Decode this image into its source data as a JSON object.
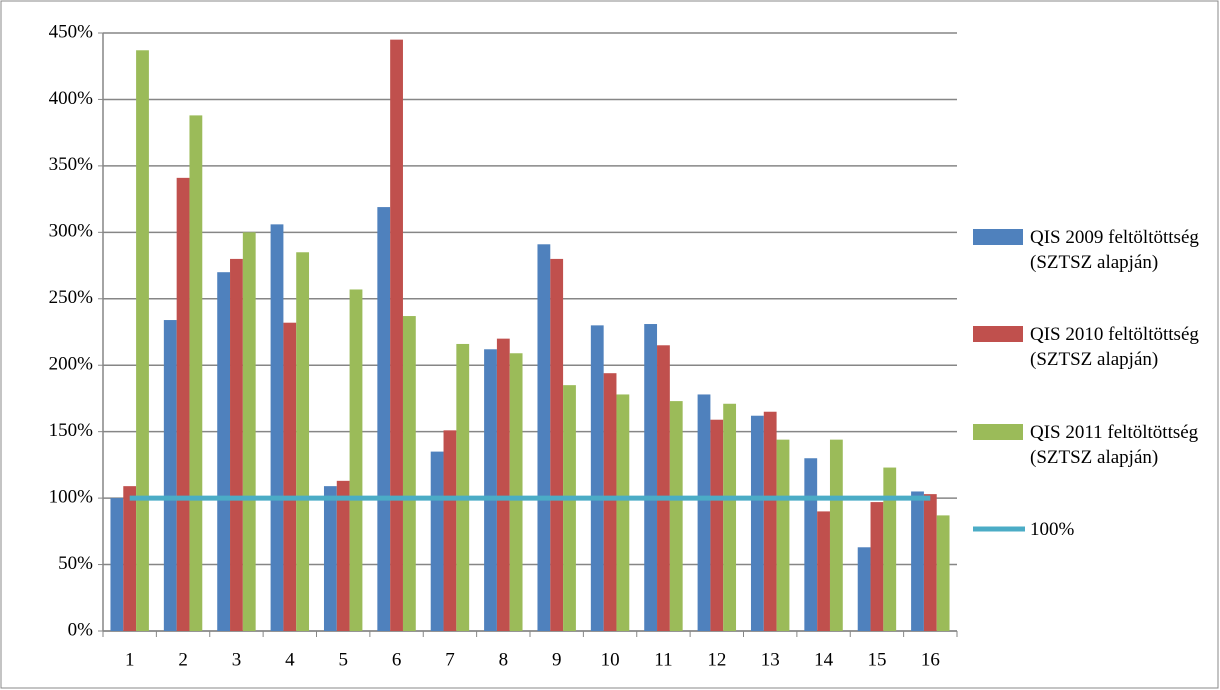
{
  "chart_data": {
    "type": "bar",
    "categories": [
      "1",
      "2",
      "3",
      "4",
      "5",
      "6",
      "7",
      "8",
      "9",
      "10",
      "11",
      "12",
      "13",
      "14",
      "15",
      "16"
    ],
    "series": [
      {
        "name": "QIS 2009 feltöltöttség (SZTSZ alapján)",
        "color": "#4f81bd",
        "values": [
          100,
          234,
          270,
          306,
          109,
          319,
          135,
          212,
          291,
          230,
          231,
          178,
          162,
          130,
          63,
          105
        ]
      },
      {
        "name": "QIS 2010 feltöltöttség (SZTSZ alapján)",
        "color": "#c0504d",
        "values": [
          109,
          341,
          280,
          232,
          113,
          445,
          151,
          220,
          280,
          194,
          215,
          159,
          165,
          90,
          97,
          103
        ]
      },
      {
        "name": "QIS 2011 feltöltöttség (SZTSZ alapján)",
        "color": "#9bbb59",
        "values": [
          437,
          388,
          300,
          285,
          257,
          237,
          216,
          209,
          185,
          178,
          173,
          171,
          144,
          144,
          123,
          87
        ]
      },
      {
        "name": "100%",
        "color": "#4bacc6",
        "type": "line",
        "values": [
          100,
          100,
          100,
          100,
          100,
          100,
          100,
          100,
          100,
          100,
          100,
          100,
          100,
          100,
          100,
          100
        ]
      }
    ],
    "ylim": [
      0,
      450
    ],
    "yticks": [
      {
        "value": 0,
        "label": "0%"
      },
      {
        "value": 50,
        "label": "50%"
      },
      {
        "value": 100,
        "label": "100%"
      },
      {
        "value": 150,
        "label": "150%"
      },
      {
        "value": 200,
        "label": "200%"
      },
      {
        "value": 250,
        "label": "250%"
      },
      {
        "value": 300,
        "label": "300%"
      },
      {
        "value": 350,
        "label": "350%"
      },
      {
        "value": 400,
        "label": "400%"
      },
      {
        "value": 450,
        "label": "450%"
      }
    ],
    "grid": true,
    "legend": "right"
  }
}
